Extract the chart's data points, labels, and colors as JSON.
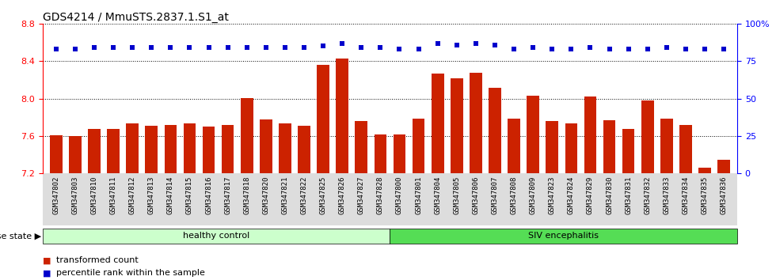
{
  "title": "GDS4214 / MmuSTS.2837.1.S1_at",
  "samples": [
    "GSM347802",
    "GSM347803",
    "GSM347810",
    "GSM347811",
    "GSM347812",
    "GSM347813",
    "GSM347814",
    "GSM347815",
    "GSM347816",
    "GSM347817",
    "GSM347818",
    "GSM347820",
    "GSM347821",
    "GSM347822",
    "GSM347825",
    "GSM347826",
    "GSM347827",
    "GSM347828",
    "GSM347800",
    "GSM347801",
    "GSM347804",
    "GSM347805",
    "GSM347806",
    "GSM347807",
    "GSM347808",
    "GSM347809",
    "GSM347823",
    "GSM347824",
    "GSM347829",
    "GSM347830",
    "GSM347831",
    "GSM347832",
    "GSM347833",
    "GSM347834",
    "GSM347835",
    "GSM347836"
  ],
  "bar_values": [
    7.61,
    7.6,
    7.68,
    7.68,
    7.74,
    7.71,
    7.72,
    7.74,
    7.7,
    7.72,
    8.01,
    7.78,
    7.74,
    7.71,
    8.36,
    8.43,
    7.76,
    7.62,
    7.62,
    7.79,
    8.27,
    8.22,
    8.28,
    8.12,
    7.79,
    8.03,
    7.76,
    7.74,
    8.02,
    7.77,
    7.68,
    7.98,
    7.79,
    7.72,
    7.26,
    7.35
  ],
  "percentile_values": [
    83,
    83,
    84,
    84,
    84,
    84,
    84,
    84,
    84,
    84,
    84,
    84,
    84,
    84,
    85,
    87,
    84,
    84,
    83,
    83,
    87,
    86,
    87,
    86,
    83,
    84,
    83,
    83,
    84,
    83,
    83,
    83,
    84,
    83,
    83,
    83
  ],
  "healthy_count": 18,
  "ylim_left": [
    7.2,
    8.8
  ],
  "ylim_right": [
    0,
    100
  ],
  "yticks_left": [
    7.2,
    7.6,
    8.0,
    8.4,
    8.8
  ],
  "yticks_right": [
    0,
    25,
    50,
    75,
    100
  ],
  "bar_color": "#cc2200",
  "dot_color": "#0000cc",
  "healthy_color": "#ccffcc",
  "siv_color": "#55dd55",
  "xticklabel_bg": "#dddddd",
  "title_fontsize": 10,
  "label_fontsize": 6.5
}
